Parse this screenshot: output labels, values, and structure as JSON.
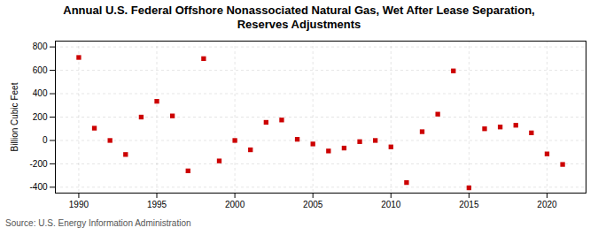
{
  "chart_data": {
    "type": "scatter",
    "title": "Annual U.S. Federal Offshore Nonassociated Natural Gas, Wet After Lease Separation,\nReserves Adjustments",
    "ylabel": "Billion Cubic Feet",
    "source": "Source: U.S. Energy Information Administration",
    "x": [
      1990,
      1991,
      1992,
      1993,
      1994,
      1995,
      1996,
      1997,
      1998,
      1999,
      2000,
      2001,
      2002,
      2003,
      2004,
      2005,
      2006,
      2007,
      2008,
      2009,
      2010,
      2011,
      2012,
      2013,
      2014,
      2015,
      2016,
      2017,
      2018,
      2019,
      2020,
      2021
    ],
    "values": [
      710,
      105,
      0,
      -120,
      200,
      335,
      210,
      -260,
      700,
      -175,
      0,
      -80,
      155,
      175,
      10,
      -30,
      -90,
      -65,
      -10,
      0,
      -55,
      -360,
      75,
      225,
      595,
      -405,
      100,
      115,
      130,
      65,
      -115,
      -205
    ],
    "color": "#cc0000",
    "marker": "square",
    "xlim": [
      1988.5,
      2022.5
    ],
    "ylim": [
      -450,
      850
    ],
    "xticks": [
      1990,
      1995,
      2000,
      2005,
      2010,
      2015,
      2020
    ],
    "yticks": [
      -400,
      -200,
      0,
      200,
      400,
      600,
      800
    ],
    "grid": true
  }
}
